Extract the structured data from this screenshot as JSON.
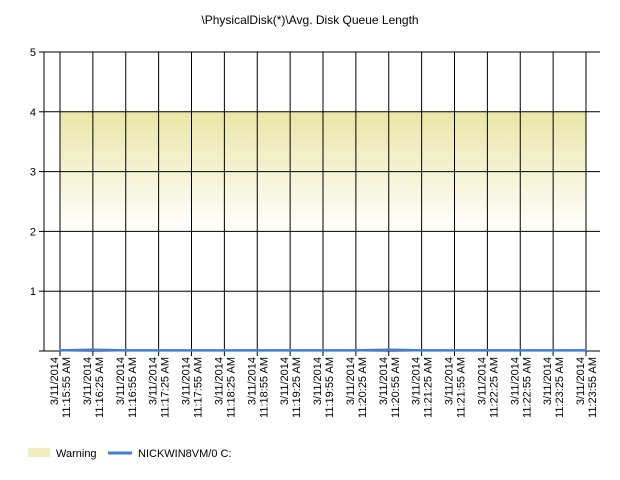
{
  "chart_data": {
    "type": "line",
    "title": "\\PhysicalDisk(*)\\Avg. Disk Queue Length",
    "xlabel": "",
    "ylabel": "",
    "ylim": [
      0,
      5
    ],
    "yticks": [
      "5",
      "4",
      "3",
      "2",
      "1"
    ],
    "grid": true,
    "legend_position": "bottom-left",
    "categories": [
      "3/11/2014 11:15:55 AM",
      "3/11/2014 11:16:25 AM",
      "3/11/2014 11:16:55 AM",
      "3/11/2014 11:17:25 AM",
      "3/11/2014 11:17:55 AM",
      "3/11/2014 11:18:25 AM",
      "3/11/2014 11:18:55 AM",
      "3/11/2014 11:19:25 AM",
      "3/11/2014 11:19:55 AM",
      "3/11/2014 11:20:25 AM",
      "3/11/2014 11:20:55 AM",
      "3/11/2014 11:21:25 AM",
      "3/11/2014 11:21:55 AM",
      "3/11/2014 11:22:25 AM",
      "3/11/2014 11:22:55 AM",
      "3/11/2014 11:23:25 AM",
      "3/11/2014 11:23:55 AM"
    ],
    "warning_band": {
      "name": "Warning",
      "from": 2,
      "to": 4,
      "color": "#e9e6a6"
    },
    "series": [
      {
        "name": "NICKWIN8VM/0 C:",
        "color": "#3d7fd6",
        "values": [
          0.01,
          0.02,
          0.01,
          0.01,
          0.01,
          0.01,
          0.01,
          0.01,
          0.01,
          0.01,
          0.02,
          0.01,
          0.01,
          0.01,
          0.01,
          0.01,
          0.01
        ]
      }
    ]
  }
}
